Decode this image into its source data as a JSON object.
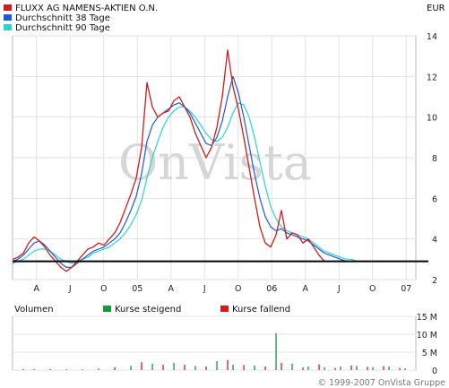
{
  "header": {
    "currency": "EUR"
  },
  "legend": [
    {
      "label": "FLUXX AG NAMENS-AKTIEN O.N.",
      "color": "#d41a1a"
    },
    {
      "label": "Durchschnitt 38 Tage",
      "color": "#1a5adc"
    },
    {
      "label": "Durchschnitt 90 Tage",
      "color": "#2ed3d0"
    }
  ],
  "watermark": "OnVista",
  "volume_panel": {
    "label": "Volumen",
    "legend": [
      {
        "label": "Kurse steigend",
        "color": "#129a3c"
      },
      {
        "label": "Kurse fallend",
        "color": "#d41a1a"
      }
    ]
  },
  "copyright": "© 1999-2007 OnVista Gruppe",
  "chart_data": [
    {
      "type": "line",
      "title": "",
      "xlabel": "",
      "ylabel": "",
      "x_ticks": [
        "A",
        "J",
        "O",
        "05",
        "A",
        "J",
        "O",
        "06",
        "A",
        "J",
        "O",
        "07"
      ],
      "y_ticks": [
        2,
        4,
        6,
        8,
        10,
        12,
        14
      ],
      "ylim": [
        2,
        14
      ],
      "xlim": [
        0,
        75
      ],
      "reference_line": 2.9,
      "series": [
        {
          "name": "FLUXX AG NAMENS-AKTIEN O.N.",
          "color": "#d41a1a",
          "x": [
            0,
            1,
            2,
            3,
            4,
            5,
            6,
            7,
            8,
            9,
            10,
            11,
            12,
            13,
            14,
            15,
            16,
            17,
            18,
            19,
            20,
            21,
            22,
            23,
            24,
            25,
            26,
            27,
            28,
            29,
            30,
            31,
            32,
            33,
            34,
            35,
            36,
            37,
            38,
            39,
            40,
            41,
            42,
            43,
            44,
            45,
            46,
            47,
            48,
            49,
            50,
            51,
            52,
            53,
            54,
            55,
            56,
            57,
            58,
            59,
            60,
            61,
            62,
            63,
            64,
            65,
            66,
            67,
            68,
            69,
            70,
            71,
            72,
            73,
            74,
            75
          ],
          "values": [
            3.0,
            3.1,
            3.3,
            3.8,
            4.1,
            3.9,
            3.6,
            3.2,
            2.9,
            2.6,
            2.4,
            2.6,
            2.9,
            3.2,
            3.5,
            3.6,
            3.8,
            3.7,
            4.0,
            4.3,
            4.8,
            5.5,
            6.2,
            7.0,
            8.5,
            11.7,
            10.5,
            10.0,
            10.2,
            10.3,
            10.8,
            11.0,
            10.5,
            10.0,
            9.2,
            8.6,
            8.0,
            8.5,
            9.5,
            11.0,
            13.3,
            11.5,
            10.4,
            9.0,
            7.5,
            6.0,
            4.6,
            3.8,
            3.6,
            4.2,
            5.4,
            4.0,
            4.3,
            4.2,
            3.8,
            4.0,
            3.6,
            3.2,
            2.9,
            2.9,
            2.9,
            2.9,
            2.9,
            2.9,
            2.9,
            2.9,
            2.9,
            2.9,
            2.9,
            2.9,
            2.9,
            2.9,
            2.9,
            2.9,
            2.9,
            2.9
          ]
        },
        {
          "name": "Durchschnitt 38 Tage",
          "color": "#1a5adc",
          "x": [
            0,
            1,
            2,
            3,
            4,
            5,
            6,
            7,
            8,
            9,
            10,
            11,
            12,
            13,
            14,
            15,
            16,
            17,
            18,
            19,
            20,
            21,
            22,
            23,
            24,
            25,
            26,
            27,
            28,
            29,
            30,
            31,
            32,
            33,
            34,
            35,
            36,
            37,
            38,
            39,
            40,
            41,
            42,
            43,
            44,
            45,
            46,
            47,
            48,
            49,
            50,
            51,
            52,
            53,
            54,
            55,
            56,
            57,
            58,
            59,
            60,
            61,
            62,
            63,
            64,
            65,
            66,
            67,
            68,
            69,
            70,
            71,
            72,
            73,
            74,
            75
          ],
          "values": [
            2.9,
            3.0,
            3.2,
            3.5,
            3.8,
            3.9,
            3.7,
            3.4,
            3.1,
            2.8,
            2.6,
            2.6,
            2.8,
            3.0,
            3.2,
            3.4,
            3.5,
            3.6,
            3.8,
            4.0,
            4.3,
            4.8,
            5.4,
            6.1,
            7.2,
            8.8,
            9.6,
            10.0,
            10.2,
            10.4,
            10.6,
            10.7,
            10.5,
            10.2,
            9.7,
            9.2,
            8.7,
            8.6,
            9.0,
            9.8,
            11.0,
            12.0,
            11.2,
            10.0,
            8.6,
            7.2,
            6.0,
            5.1,
            4.6,
            4.4,
            4.5,
            4.3,
            4.2,
            4.1,
            4.0,
            3.9,
            3.7,
            3.5,
            3.3,
            3.2,
            3.1,
            3.0,
            2.9,
            2.9,
            2.9,
            2.9,
            2.9,
            2.9,
            2.9,
            2.9,
            2.9,
            2.9,
            2.9,
            2.9,
            2.9,
            2.9
          ]
        },
        {
          "name": "Durchschnitt 90 Tage",
          "color": "#2ed3d0",
          "x": [
            0,
            1,
            2,
            3,
            4,
            5,
            6,
            7,
            8,
            9,
            10,
            11,
            12,
            13,
            14,
            15,
            16,
            17,
            18,
            19,
            20,
            21,
            22,
            23,
            24,
            25,
            26,
            27,
            28,
            29,
            30,
            31,
            32,
            33,
            34,
            35,
            36,
            37,
            38,
            39,
            40,
            41,
            42,
            43,
            44,
            45,
            46,
            47,
            48,
            49,
            50,
            51,
            52,
            53,
            54,
            55,
            56,
            57,
            58,
            59,
            60,
            61,
            62,
            63,
            64,
            65,
            66,
            67,
            68,
            69,
            70,
            71,
            72,
            73,
            74,
            75
          ],
          "values": [
            2.8,
            2.9,
            3.0,
            3.2,
            3.4,
            3.5,
            3.5,
            3.4,
            3.2,
            3.0,
            2.9,
            2.8,
            2.9,
            3.0,
            3.1,
            3.3,
            3.4,
            3.5,
            3.6,
            3.8,
            4.0,
            4.3,
            4.7,
            5.2,
            5.9,
            7.0,
            8.0,
            8.8,
            9.5,
            10.0,
            10.3,
            10.5,
            10.5,
            10.3,
            10.0,
            9.6,
            9.2,
            8.9,
            8.8,
            9.0,
            9.5,
            10.2,
            10.7,
            10.6,
            10.0,
            9.0,
            7.8,
            6.6,
            5.6,
            5.0,
            4.6,
            4.4,
            4.3,
            4.2,
            4.1,
            4.0,
            3.8,
            3.6,
            3.4,
            3.3,
            3.2,
            3.1,
            3.0,
            3.0,
            2.9,
            2.9,
            2.9,
            2.9,
            2.9,
            2.9,
            2.9,
            2.9,
            2.9,
            2.9,
            2.9,
            2.9
          ]
        }
      ]
    },
    {
      "type": "bar",
      "title": "",
      "xlabel": "",
      "ylabel": "",
      "y_ticks": [
        "0",
        "5 M",
        "10 M",
        "15 M"
      ],
      "ylim": [
        0,
        15
      ],
      "xlim": [
        0,
        75
      ],
      "series": [
        {
          "name": "Kurse steigend",
          "color": "#129a3c",
          "x": [
            4,
            10,
            16,
            22,
            26,
            30,
            34,
            38,
            41,
            45,
            49,
            52,
            55,
            58,
            61,
            64,
            67,
            70,
            73
          ],
          "values": [
            0.3,
            0.2,
            0.4,
            1.2,
            1.8,
            2.0,
            1.2,
            2.5,
            1.5,
            1.3,
            10.3,
            1.8,
            1.0,
            0.8,
            1.0,
            1.2,
            0.8,
            1.0,
            0.5
          ]
        },
        {
          "name": "Kurse fallend",
          "color": "#d41a1a",
          "x": [
            2,
            7,
            13,
            19,
            24,
            28,
            32,
            36,
            40,
            43,
            47,
            50,
            54,
            57,
            60,
            63,
            66,
            69,
            72
          ],
          "values": [
            0.3,
            0.3,
            0.2,
            0.8,
            2.2,
            1.5,
            1.5,
            1.0,
            2.8,
            1.4,
            1.0,
            2.0,
            0.7,
            1.6,
            0.6,
            1.3,
            0.9,
            1.1,
            0.6
          ]
        }
      ]
    }
  ]
}
